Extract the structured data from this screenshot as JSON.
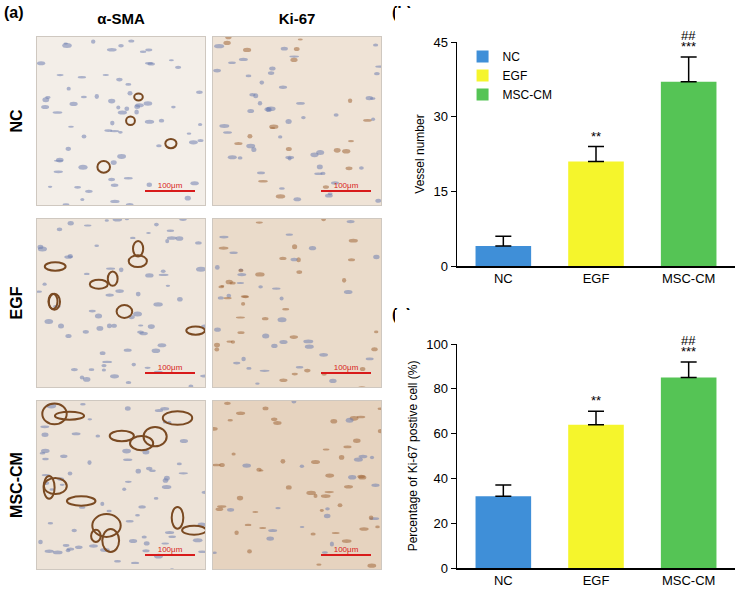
{
  "panel_labels": [
    "(a)",
    "(b)",
    "(c)"
  ],
  "micrographs": {
    "columns": [
      "α-SMA",
      "Ki-67"
    ],
    "rows": [
      "NC",
      "EGF",
      "MSC-CM"
    ],
    "scale_bar": "100μm"
  },
  "chart_data": [
    {
      "type": "bar",
      "ylabel": "Vessel number",
      "categories": [
        "NC",
        "EGF",
        "MSC-CM"
      ],
      "values": [
        4,
        21,
        37
      ],
      "errors": [
        2,
        3,
        5
      ],
      "colors": [
        "#3f8fd8",
        "#f5f52c",
        "#55c455"
      ],
      "ylim": [
        0,
        45
      ],
      "yticks": [
        0,
        15,
        30,
        45
      ],
      "grid": false,
      "legend": "top left",
      "annotations": [
        {
          "category": "EGF",
          "text": "**"
        },
        {
          "category": "MSC-CM",
          "text": "***"
        },
        {
          "category": "MSC-CM",
          "text": "##"
        }
      ]
    },
    {
      "type": "bar",
      "ylabel": "Percentage of Ki-67 postive cell (%)",
      "categories": [
        "NC",
        "EGF",
        "MSC-CM"
      ],
      "values": [
        32,
        64,
        85
      ],
      "errors": [
        5,
        6,
        7
      ],
      "colors": [
        "#3f8fd8",
        "#f5f52c",
        "#55c455"
      ],
      "ylim": [
        0,
        100
      ],
      "yticks": [
        0,
        20,
        40,
        60,
        80,
        100
      ],
      "grid": false,
      "annotations": [
        {
          "category": "EGF",
          "text": "**"
        },
        {
          "category": "MSC-CM",
          "text": "***"
        },
        {
          "category": "MSC-CM",
          "text": "##"
        }
      ]
    }
  ]
}
